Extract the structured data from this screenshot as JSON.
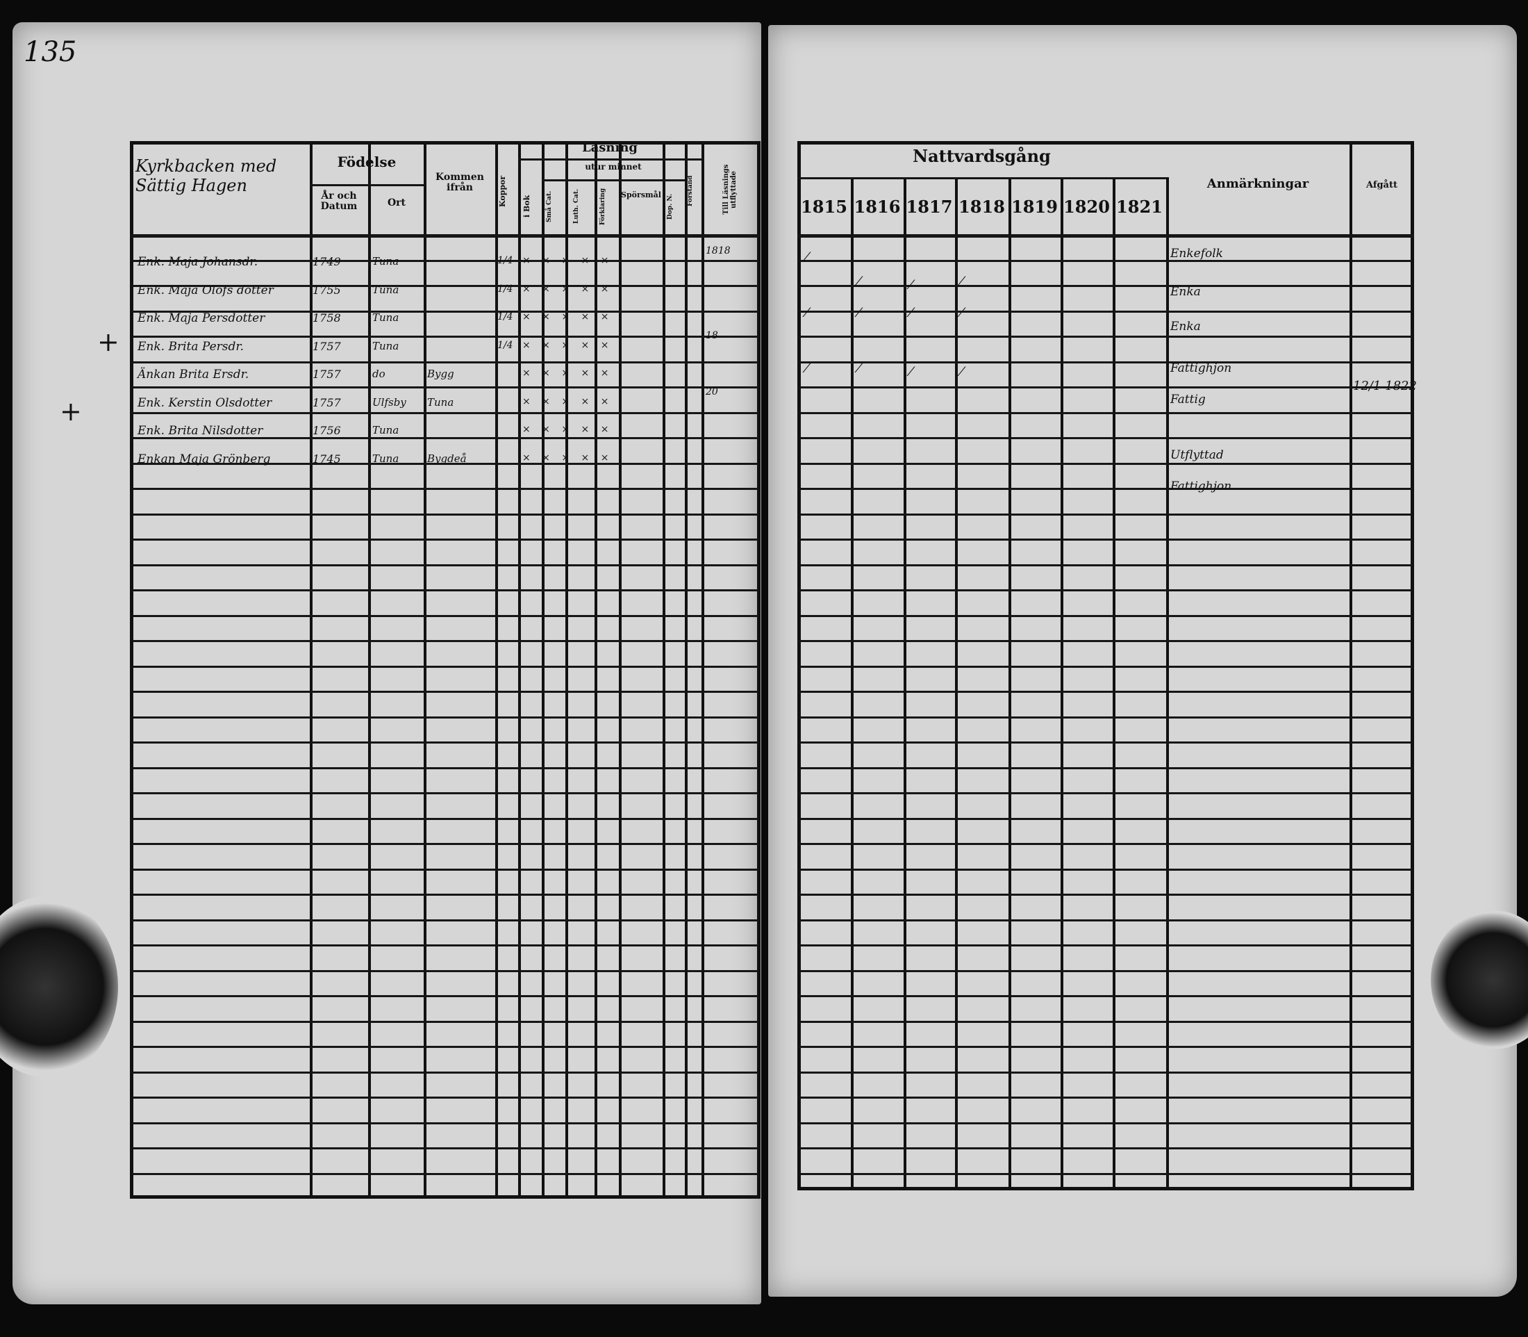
{
  "page_number": "135",
  "left_table": {
    "handwritten_heading": "Kyrkbacken med Sättig Hagen",
    "headers": {
      "birth": "Födelse",
      "birth_date": "År och Datum",
      "birth_place": "Ort",
      "came_from": "Kommen ifrån",
      "smallpox": "Koppor",
      "reading": "Läsning",
      "from_memory": "utur minnet",
      "in_book": "i Bok",
      "small_cat": "Små Cat.",
      "luth_cat": "Luth. Cat.",
      "explanation": "Förklaring",
      "questions": "Spörsmål",
      "dop": "Dop. N.",
      "understanding": "Förstånd",
      "moved_out": "Till Läsnings utflyttade"
    },
    "entries": [
      {
        "name": "Enk. Maja Johansdr.",
        "date": "1749",
        "place": "Tuna",
        "came": "",
        "smallpox": "1/4",
        "note": "1818"
      },
      {
        "name": "Enk. Maja Olofs dotter",
        "date": "1755",
        "place": "Tuna",
        "came": "",
        "smallpox": "1/4",
        "note": ""
      },
      {
        "name": "Enk. Maja Persdotter",
        "date": "1758",
        "place": "Tuna",
        "came": "",
        "smallpox": "1/4",
        "note": ""
      },
      {
        "name": "Enk. Brita Persdr.",
        "date": "1757",
        "place": "Tuna",
        "came": "",
        "smallpox": "1/4",
        "note": "18"
      },
      {
        "name": "Änkan Brita Ersdr.",
        "date": "1757",
        "place": "do",
        "came": "Bygg",
        "smallpox": "",
        "note": ""
      },
      {
        "name": "Enk. Kerstin Olsdotter",
        "date": "1757",
        "place": "Ulfsby",
        "came": "Tuna",
        "smallpox": "",
        "note": "20"
      },
      {
        "name": "Enk. Brita Nilsdotter",
        "date": "1756",
        "place": "Tuna",
        "came": "",
        "smallpox": "",
        "note": ""
      },
      {
        "name": "Enkan Maja Grönberg",
        "date": "1745",
        "place": "Tuna",
        "came": "Bygdeå",
        "smallpox": "",
        "note": ""
      }
    ]
  },
  "right_table": {
    "headers": {
      "communion": "Nattvardsgång",
      "years": [
        "1815",
        "1816",
        "1817",
        "1818",
        "1819",
        "1820",
        "1821"
      ],
      "remarks": "Anmärkningar",
      "departed": "Afgått"
    },
    "remarks": [
      "Enkefolk",
      "Enka",
      "Enka",
      "Fattighjon",
      "Fattig",
      "Utflyttad",
      "Fattighjon"
    ],
    "departed_note": "12/1 1822"
  }
}
